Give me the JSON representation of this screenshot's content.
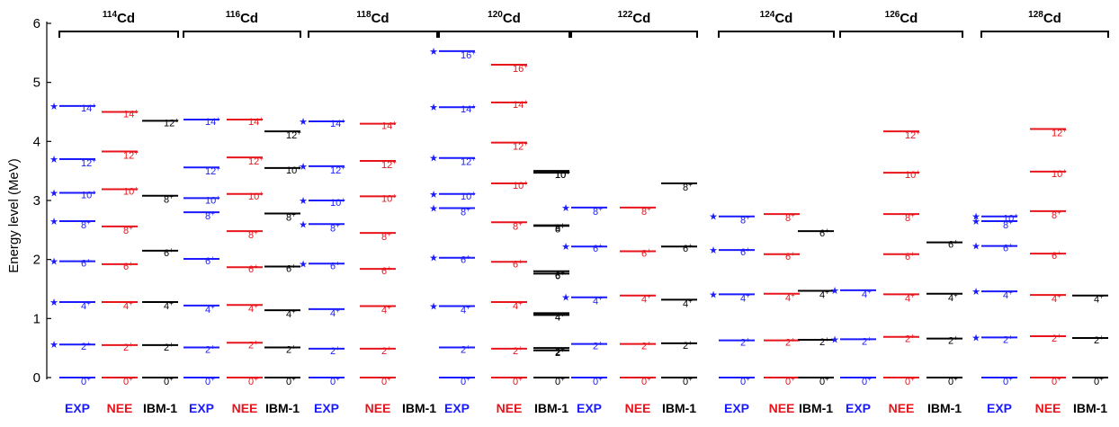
{
  "chart_data": {
    "type": "level-scheme",
    "ylabel": "Energy level (MeV)",
    "ylim": [
      0,
      6
    ],
    "yticks": [
      "0",
      "1",
      "2",
      "3",
      "4",
      "5",
      "6"
    ],
    "model_colors": {
      "EXP": "#1a1aff",
      "NEE": "#e8141b",
      "IBM-1": "#000000"
    },
    "nuclei": [
      {
        "mass": "114",
        "element": "Cd",
        "models": [
          "EXP",
          "NEE",
          "IBM-1"
        ],
        "levels": {
          "EXP": [
            {
              "spin": "0",
              "E": 0.0
            },
            {
              "spin": "2",
              "E": 0.56,
              "star": true
            },
            {
              "spin": "4",
              "E": 1.28,
              "star": true
            },
            {
              "spin": "6",
              "E": 1.97,
              "star": true
            },
            {
              "spin": "8",
              "E": 2.65,
              "star": true
            },
            {
              "spin": "10",
              "E": 3.13,
              "star": true
            },
            {
              "spin": "12",
              "E": 3.7,
              "star": true
            },
            {
              "spin": "14",
              "E": 4.6,
              "star": true
            }
          ],
          "NEE": [
            {
              "spin": "0",
              "E": 0.0
            },
            {
              "spin": "2",
              "E": 0.55
            },
            {
              "spin": "4",
              "E": 1.28
            },
            {
              "spin": "6",
              "E": 1.92
            },
            {
              "spin": "8",
              "E": 2.56
            },
            {
              "spin": "10",
              "E": 3.19
            },
            {
              "spin": "12",
              "E": 3.83
            },
            {
              "spin": "14",
              "E": 4.5
            }
          ],
          "IBM-1": [
            {
              "spin": "0",
              "E": 0.0
            },
            {
              "spin": "2",
              "E": 0.55
            },
            {
              "spin": "4",
              "E": 1.28
            },
            {
              "spin": "6",
              "E": 2.15
            },
            {
              "spin": "8",
              "E": 3.08
            },
            {
              "spin": "12",
              "E": 4.35
            }
          ]
        }
      },
      {
        "mass": "116",
        "element": "Cd",
        "models": [
          "EXP",
          "NEE",
          "IBM-1"
        ],
        "levels": {
          "EXP": [
            {
              "spin": "0",
              "E": 0.0
            },
            {
              "spin": "2",
              "E": 0.51
            },
            {
              "spin": "4",
              "E": 1.22
            },
            {
              "spin": "6",
              "E": 2.01
            },
            {
              "spin": "8",
              "E": 2.8
            },
            {
              "spin": "10",
              "E": 3.04
            },
            {
              "spin": "12",
              "E": 3.56
            },
            {
              "spin": "14",
              "E": 4.37
            }
          ],
          "NEE": [
            {
              "spin": "0",
              "E": 0.0
            },
            {
              "spin": "2",
              "E": 0.59
            },
            {
              "spin": "4",
              "E": 1.23
            },
            {
              "spin": "6",
              "E": 1.87
            },
            {
              "spin": "8",
              "E": 2.48
            },
            {
              "spin": "10",
              "E": 3.11
            },
            {
              "spin": "12",
              "E": 3.73
            },
            {
              "spin": "14",
              "E": 4.37
            }
          ],
          "IBM-1": [
            {
              "spin": "0",
              "E": 0.0
            },
            {
              "spin": "2",
              "E": 0.51
            },
            {
              "spin": "4",
              "E": 1.14
            },
            {
              "spin": "6",
              "E": 1.88
            },
            {
              "spin": "8",
              "E": 2.78
            },
            {
              "spin": "10",
              "E": 3.55
            },
            {
              "spin": "12",
              "E": 4.17
            }
          ]
        }
      },
      {
        "mass": "118",
        "element": "Cd",
        "models": [
          "EXP",
          "NEE",
          "IBM-1"
        ],
        "levels": {
          "EXP": [
            {
              "spin": "0",
              "E": 0.0
            },
            {
              "spin": "2",
              "E": 0.49
            },
            {
              "spin": "4",
              "E": 1.16
            },
            {
              "spin": "6",
              "E": 1.93,
              "star": true
            },
            {
              "spin": "8",
              "E": 2.6,
              "star": true
            },
            {
              "spin": "10",
              "E": 3.0,
              "star": true
            },
            {
              "spin": "12",
              "E": 3.58,
              "star": true
            },
            {
              "spin": "14",
              "E": 4.34,
              "star": true
            }
          ],
          "NEE": [
            {
              "spin": "0",
              "E": 0.0
            },
            {
              "spin": "2",
              "E": 0.49
            },
            {
              "spin": "4",
              "E": 1.21
            },
            {
              "spin": "6",
              "E": 1.84
            },
            {
              "spin": "8",
              "E": 2.45
            },
            {
              "spin": "10",
              "E": 3.07
            },
            {
              "spin": "12",
              "E": 3.67
            },
            {
              "spin": "14",
              "E": 4.3
            }
          ],
          "IBM-1": []
        }
      },
      {
        "mass": "120",
        "element": "Cd",
        "models": [
          "EXP",
          "NEE",
          "IBM-1"
        ],
        "levels": {
          "EXP": [
            {
              "spin": "0",
              "E": 0.0
            },
            {
              "spin": "2",
              "E": 0.51
            },
            {
              "spin": "4",
              "E": 1.21,
              "star": true
            },
            {
              "spin": "6",
              "E": 2.03,
              "star": true
            },
            {
              "spin": "8",
              "E": 2.87,
              "star": true
            },
            {
              "spin": "10",
              "E": 3.11,
              "star": true
            },
            {
              "spin": "12",
              "E": 3.72,
              "star": true
            },
            {
              "spin": "14",
              "E": 4.58,
              "star": true
            },
            {
              "spin": "16",
              "E": 5.53,
              "star": true
            }
          ],
          "NEE": [
            {
              "spin": "0",
              "E": 0.0
            },
            {
              "spin": "2",
              "E": 0.49
            },
            {
              "spin": "4",
              "E": 1.28
            },
            {
              "spin": "6",
              "E": 1.96
            },
            {
              "spin": "8",
              "E": 2.63
            },
            {
              "spin": "10",
              "E": 3.29
            },
            {
              "spin": "12",
              "E": 3.98
            },
            {
              "spin": "14",
              "E": 4.66
            },
            {
              "spin": "16",
              "E": 5.3
            }
          ],
          "IBM-1": [
            {
              "spin": "0",
              "E": 0.0
            },
            {
              "spin": "2",
              "E": 0.46
            },
            {
              "spin": "2",
              "E": 0.5
            },
            {
              "spin": "4",
              "E": 1.06
            },
            {
              "spin": "4",
              "E": 1.09
            },
            {
              "spin": "6",
              "E": 1.76
            },
            {
              "spin": "6",
              "E": 1.8
            },
            {
              "spin": "8",
              "E": 2.57
            },
            {
              "spin": "8",
              "E": 2.58
            },
            {
              "spin": "10",
              "E": 3.47
            },
            {
              "spin": "10",
              "E": 3.5
            }
          ]
        }
      },
      {
        "mass": "122",
        "element": "Cd",
        "models": [
          "EXP",
          "NEE",
          "IBM-1"
        ],
        "levels": {
          "EXP": [
            {
              "spin": "0",
              "E": 0.0
            },
            {
              "spin": "2",
              "E": 0.57
            },
            {
              "spin": "4",
              "E": 1.36,
              "star": true
            },
            {
              "spin": "6",
              "E": 2.22,
              "star": true
            },
            {
              "spin": "8",
              "E": 2.88,
              "star": true
            }
          ],
          "NEE": [
            {
              "spin": "0",
              "E": 0.0
            },
            {
              "spin": "2",
              "E": 0.57
            },
            {
              "spin": "4",
              "E": 1.39
            },
            {
              "spin": "6",
              "E": 2.14
            },
            {
              "spin": "8",
              "E": 2.88
            }
          ],
          "IBM-1": [
            {
              "spin": "0",
              "E": 0.0
            },
            {
              "spin": "2",
              "E": 0.58
            },
            {
              "spin": "4",
              "E": 1.32
            },
            {
              "spin": "6",
              "E": 2.22
            },
            {
              "spin": "8",
              "E": 3.29
            }
          ]
        }
      },
      {
        "mass": "124",
        "element": "Cd",
        "models": [
          "EXP",
          "NEE",
          "IBM-1"
        ],
        "levels": {
          "EXP": [
            {
              "spin": "0",
              "E": 0.0
            },
            {
              "spin": "2",
              "E": 0.63
            },
            {
              "spin": "4",
              "E": 1.41,
              "star": true
            },
            {
              "spin": "6",
              "E": 2.16,
              "star": true
            },
            {
              "spin": "8",
              "E": 2.73,
              "star": true
            }
          ],
          "NEE": [
            {
              "spin": "0",
              "E": 0.0
            },
            {
              "spin": "2",
              "E": 0.63
            },
            {
              "spin": "4",
              "E": 1.42
            },
            {
              "spin": "6",
              "E": 2.09
            },
            {
              "spin": "8",
              "E": 2.77
            }
          ],
          "IBM-1": [
            {
              "spin": "0",
              "E": 0.0
            },
            {
              "spin": "2",
              "E": 0.64
            },
            {
              "spin": "4",
              "E": 1.47
            },
            {
              "spin": "6",
              "E": 2.48
            }
          ]
        }
      },
      {
        "mass": "126",
        "element": "Cd",
        "models": [
          "EXP",
          "NEE",
          "IBM-1"
        ],
        "levels": {
          "EXP": [
            {
              "spin": "0",
              "E": 0.0
            },
            {
              "spin": "2",
              "E": 0.65,
              "star": true
            },
            {
              "spin": "4",
              "E": 1.48,
              "star": true
            }
          ],
          "NEE": [
            {
              "spin": "0",
              "E": 0.0
            },
            {
              "spin": "2",
              "E": 0.69
            },
            {
              "spin": "4",
              "E": 1.41
            },
            {
              "spin": "6",
              "E": 2.09
            },
            {
              "spin": "8",
              "E": 2.77
            },
            {
              "spin": "10",
              "E": 3.47
            },
            {
              "spin": "12",
              "E": 4.17
            }
          ],
          "IBM-1": [
            {
              "spin": "0",
              "E": 0.0
            },
            {
              "spin": "2",
              "E": 0.66
            },
            {
              "spin": "4",
              "E": 1.42
            },
            {
              "spin": "6",
              "E": 2.29
            }
          ]
        }
      },
      {
        "mass": "128",
        "element": "Cd",
        "models": [
          "EXP",
          "NEE",
          "IBM-1"
        ],
        "levels": {
          "EXP": [
            {
              "spin": "0",
              "E": 0.0
            },
            {
              "spin": "2",
              "E": 0.68,
              "star": true
            },
            {
              "spin": "4",
              "E": 1.46,
              "star": true
            },
            {
              "spin": "6",
              "E": 2.23,
              "star": true
            },
            {
              "spin": "8",
              "E": 2.65,
              "star": true
            },
            {
              "spin": "10",
              "E": 2.73,
              "star": true
            }
          ],
          "NEE": [
            {
              "spin": "0",
              "E": 0.0
            },
            {
              "spin": "2",
              "E": 0.7
            },
            {
              "spin": "4",
              "E": 1.4
            },
            {
              "spin": "6",
              "E": 2.1
            },
            {
              "spin": "8",
              "E": 2.82
            },
            {
              "spin": "10",
              "E": 3.49
            },
            {
              "spin": "12",
              "E": 4.21
            }
          ],
          "IBM-1": [
            {
              "spin": "0",
              "E": 0.0
            },
            {
              "spin": "2",
              "E": 0.67
            },
            {
              "spin": "4",
              "E": 1.39
            }
          ]
        }
      }
    ]
  }
}
